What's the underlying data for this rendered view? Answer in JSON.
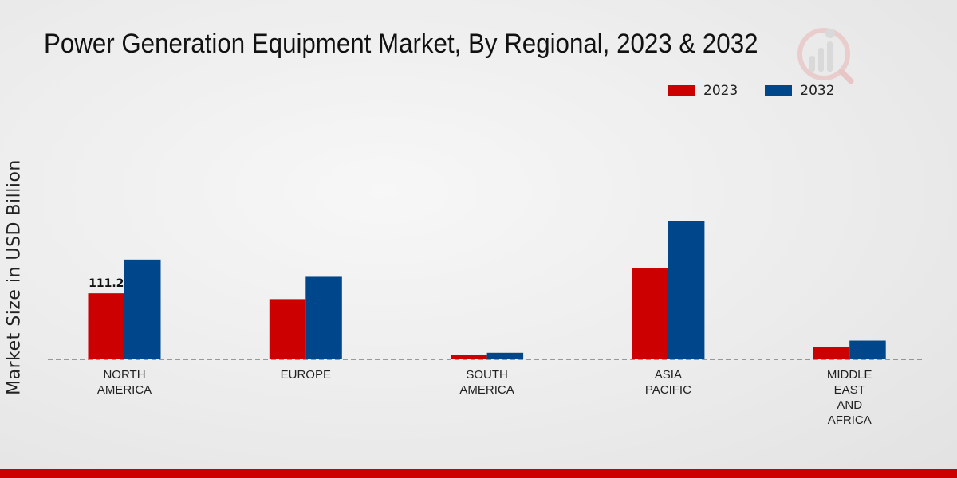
{
  "chart_data": {
    "type": "bar",
    "title": "Power Generation Equipment Market, By Regional, 2023 & 2032",
    "xlabel": "",
    "ylabel": "Market Size in USD Billion",
    "categories": [
      [
        "NORTH",
        "AMERICA"
      ],
      [
        "EUROPE"
      ],
      [
        "SOUTH",
        "AMERICA"
      ],
      [
        "ASIA",
        "PACIFIC"
      ],
      [
        "MIDDLE",
        "EAST",
        "AND",
        "AFRICA"
      ]
    ],
    "series": [
      {
        "name": "2023",
        "color": "#cc0000",
        "values": [
          111.2,
          101.5,
          7.5,
          153.0,
          20.5
        ]
      },
      {
        "name": "2032",
        "color": "#00468b",
        "values": [
          168.0,
          139.0,
          11.0,
          233.0,
          31.5
        ]
      }
    ],
    "data_labels": [
      {
        "series": 0,
        "index": 0,
        "text": "111.2"
      }
    ],
    "ylim": [
      0,
      300
    ],
    "legend_position": "top-right",
    "grid": false
  }
}
